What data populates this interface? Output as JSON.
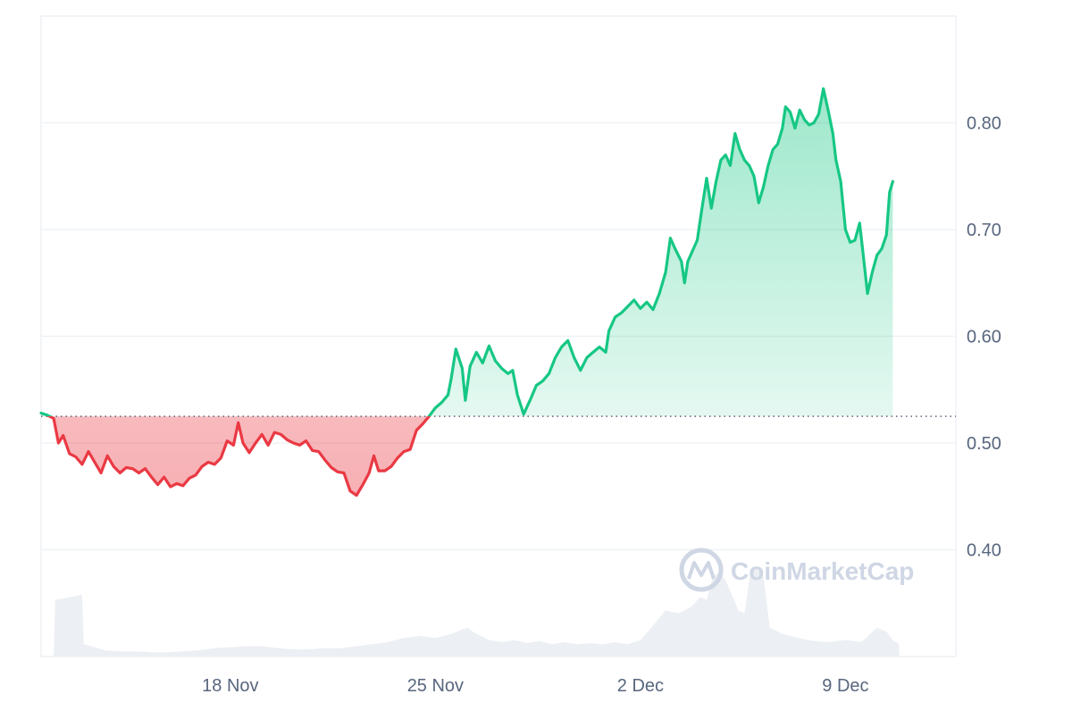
{
  "chart_data": {
    "type": "area",
    "baseline": 0.525,
    "ylim": [
      0.3,
      0.9
    ],
    "yticks": [
      {
        "value": 0.8,
        "label": "0.80"
      },
      {
        "value": 0.7,
        "label": "0.70"
      },
      {
        "value": 0.6,
        "label": "0.60"
      },
      {
        "value": 0.5,
        "label": "0.50"
      },
      {
        "value": 0.4,
        "label": "0.40"
      }
    ],
    "x_domain": [
      0,
      29
    ],
    "xticks": [
      {
        "value": 6.0,
        "label": "18 Nov"
      },
      {
        "value": 12.5,
        "label": "25 Nov"
      },
      {
        "value": 19.0,
        "label": "2 Dec"
      },
      {
        "value": 25.5,
        "label": "9 Dec"
      }
    ],
    "price_series": [
      [
        0.0,
        0.528
      ],
      [
        0.2,
        0.526
      ],
      [
        0.4,
        0.523
      ],
      [
        0.55,
        0.5
      ],
      [
        0.7,
        0.507
      ],
      [
        0.9,
        0.49
      ],
      [
        1.1,
        0.487
      ],
      [
        1.3,
        0.48
      ],
      [
        1.5,
        0.492
      ],
      [
        1.7,
        0.482
      ],
      [
        1.9,
        0.472
      ],
      [
        2.1,
        0.488
      ],
      [
        2.3,
        0.478
      ],
      [
        2.5,
        0.472
      ],
      [
        2.7,
        0.477
      ],
      [
        2.9,
        0.476
      ],
      [
        3.1,
        0.472
      ],
      [
        3.3,
        0.476
      ],
      [
        3.5,
        0.468
      ],
      [
        3.7,
        0.461
      ],
      [
        3.9,
        0.468
      ],
      [
        4.1,
        0.459
      ],
      [
        4.3,
        0.462
      ],
      [
        4.5,
        0.46
      ],
      [
        4.7,
        0.467
      ],
      [
        4.9,
        0.47
      ],
      [
        5.1,
        0.478
      ],
      [
        5.3,
        0.482
      ],
      [
        5.5,
        0.48
      ],
      [
        5.7,
        0.486
      ],
      [
        5.9,
        0.502
      ],
      [
        6.1,
        0.498
      ],
      [
        6.25,
        0.519
      ],
      [
        6.4,
        0.5
      ],
      [
        6.6,
        0.491
      ],
      [
        6.8,
        0.5
      ],
      [
        7.0,
        0.508
      ],
      [
        7.2,
        0.498
      ],
      [
        7.4,
        0.51
      ],
      [
        7.6,
        0.508
      ],
      [
        7.8,
        0.503
      ],
      [
        8.0,
        0.5
      ],
      [
        8.2,
        0.498
      ],
      [
        8.4,
        0.502
      ],
      [
        8.6,
        0.493
      ],
      [
        8.8,
        0.492
      ],
      [
        9.0,
        0.484
      ],
      [
        9.2,
        0.477
      ],
      [
        9.4,
        0.473
      ],
      [
        9.6,
        0.472
      ],
      [
        9.8,
        0.455
      ],
      [
        10.0,
        0.451
      ],
      [
        10.2,
        0.461
      ],
      [
        10.4,
        0.472
      ],
      [
        10.55,
        0.488
      ],
      [
        10.7,
        0.474
      ],
      [
        10.9,
        0.474
      ],
      [
        11.1,
        0.478
      ],
      [
        11.3,
        0.486
      ],
      [
        11.5,
        0.492
      ],
      [
        11.7,
        0.494
      ],
      [
        11.9,
        0.512
      ],
      [
        12.1,
        0.518
      ],
      [
        12.3,
        0.525
      ],
      [
        12.5,
        0.533
      ],
      [
        12.7,
        0.538
      ],
      [
        12.9,
        0.545
      ],
      [
        13.0,
        0.56
      ],
      [
        13.15,
        0.588
      ],
      [
        13.35,
        0.57
      ],
      [
        13.45,
        0.54
      ],
      [
        13.6,
        0.572
      ],
      [
        13.8,
        0.585
      ],
      [
        14.0,
        0.575
      ],
      [
        14.2,
        0.591
      ],
      [
        14.4,
        0.577
      ],
      [
        14.6,
        0.57
      ],
      [
        14.8,
        0.565
      ],
      [
        14.95,
        0.568
      ],
      [
        15.1,
        0.545
      ],
      [
        15.3,
        0.527
      ],
      [
        15.5,
        0.54
      ],
      [
        15.7,
        0.554
      ],
      [
        15.9,
        0.558
      ],
      [
        16.1,
        0.565
      ],
      [
        16.3,
        0.58
      ],
      [
        16.5,
        0.59
      ],
      [
        16.7,
        0.596
      ],
      [
        16.9,
        0.58
      ],
      [
        17.1,
        0.568
      ],
      [
        17.3,
        0.58
      ],
      [
        17.5,
        0.585
      ],
      [
        17.7,
        0.59
      ],
      [
        17.9,
        0.585
      ],
      [
        18.0,
        0.605
      ],
      [
        18.2,
        0.618
      ],
      [
        18.4,
        0.622
      ],
      [
        18.6,
        0.628
      ],
      [
        18.8,
        0.634
      ],
      [
        19.0,
        0.626
      ],
      [
        19.2,
        0.632
      ],
      [
        19.4,
        0.625
      ],
      [
        19.6,
        0.64
      ],
      [
        19.8,
        0.66
      ],
      [
        19.95,
        0.692
      ],
      [
        20.1,
        0.682
      ],
      [
        20.3,
        0.67
      ],
      [
        20.4,
        0.65
      ],
      [
        20.5,
        0.67
      ],
      [
        20.65,
        0.68
      ],
      [
        20.8,
        0.69
      ],
      [
        20.95,
        0.72
      ],
      [
        21.1,
        0.748
      ],
      [
        21.25,
        0.72
      ],
      [
        21.4,
        0.745
      ],
      [
        21.55,
        0.765
      ],
      [
        21.7,
        0.77
      ],
      [
        21.85,
        0.76
      ],
      [
        22.0,
        0.79
      ],
      [
        22.15,
        0.775
      ],
      [
        22.3,
        0.765
      ],
      [
        22.45,
        0.76
      ],
      [
        22.6,
        0.75
      ],
      [
        22.75,
        0.725
      ],
      [
        22.9,
        0.74
      ],
      [
        23.05,
        0.76
      ],
      [
        23.2,
        0.775
      ],
      [
        23.35,
        0.78
      ],
      [
        23.5,
        0.795
      ],
      [
        23.6,
        0.815
      ],
      [
        23.75,
        0.81
      ],
      [
        23.9,
        0.795
      ],
      [
        24.05,
        0.812
      ],
      [
        24.2,
        0.803
      ],
      [
        24.35,
        0.798
      ],
      [
        24.5,
        0.8
      ],
      [
        24.65,
        0.808
      ],
      [
        24.8,
        0.832
      ],
      [
        24.95,
        0.812
      ],
      [
        25.1,
        0.79
      ],
      [
        25.2,
        0.765
      ],
      [
        25.35,
        0.745
      ],
      [
        25.5,
        0.7
      ],
      [
        25.65,
        0.688
      ],
      [
        25.8,
        0.69
      ],
      [
        25.95,
        0.706
      ],
      [
        26.05,
        0.68
      ],
      [
        26.2,
        0.64
      ],
      [
        26.35,
        0.66
      ],
      [
        26.5,
        0.676
      ],
      [
        26.65,
        0.682
      ],
      [
        26.8,
        0.695
      ],
      [
        26.9,
        0.735
      ],
      [
        27.0,
        0.745
      ]
    ],
    "volume_series": [
      [
        0.0,
        0.0
      ],
      [
        0.4,
        0.0
      ],
      [
        0.45,
        0.55
      ],
      [
        1.3,
        0.6
      ],
      [
        1.35,
        0.12
      ],
      [
        1.6,
        0.1
      ],
      [
        2.0,
        0.06
      ],
      [
        2.5,
        0.05
      ],
      [
        3.0,
        0.05
      ],
      [
        3.5,
        0.04
      ],
      [
        4.0,
        0.04
      ],
      [
        4.5,
        0.05
      ],
      [
        5.0,
        0.06
      ],
      [
        5.5,
        0.08
      ],
      [
        6.0,
        0.09
      ],
      [
        6.5,
        0.1
      ],
      [
        7.0,
        0.1
      ],
      [
        7.5,
        0.08
      ],
      [
        8.0,
        0.07
      ],
      [
        8.5,
        0.07
      ],
      [
        9.0,
        0.08
      ],
      [
        9.5,
        0.08
      ],
      [
        10.0,
        0.1
      ],
      [
        10.5,
        0.12
      ],
      [
        11.0,
        0.14
      ],
      [
        11.5,
        0.18
      ],
      [
        12.0,
        0.2
      ],
      [
        12.5,
        0.18
      ],
      [
        13.0,
        0.22
      ],
      [
        13.5,
        0.28
      ],
      [
        13.8,
        0.22
      ],
      [
        14.2,
        0.16
      ],
      [
        14.6,
        0.14
      ],
      [
        15.0,
        0.16
      ],
      [
        15.4,
        0.13
      ],
      [
        15.8,
        0.15
      ],
      [
        16.2,
        0.12
      ],
      [
        16.6,
        0.14
      ],
      [
        17.0,
        0.12
      ],
      [
        17.4,
        0.13
      ],
      [
        17.8,
        0.12
      ],
      [
        18.2,
        0.14
      ],
      [
        18.6,
        0.12
      ],
      [
        19.0,
        0.16
      ],
      [
        19.4,
        0.3
      ],
      [
        19.8,
        0.45
      ],
      [
        20.2,
        0.42
      ],
      [
        20.6,
        0.48
      ],
      [
        20.9,
        0.58
      ],
      [
        21.1,
        0.55
      ],
      [
        21.3,
        0.78
      ],
      [
        21.5,
        0.82
      ],
      [
        21.7,
        0.74
      ],
      [
        21.9,
        0.6
      ],
      [
        22.1,
        0.45
      ],
      [
        22.3,
        0.42
      ],
      [
        22.5,
        0.85
      ],
      [
        22.7,
        0.86
      ],
      [
        22.9,
        0.78
      ],
      [
        23.1,
        0.28
      ],
      [
        23.5,
        0.22
      ],
      [
        24.0,
        0.18
      ],
      [
        24.5,
        0.15
      ],
      [
        25.0,
        0.14
      ],
      [
        25.5,
        0.16
      ],
      [
        26.0,
        0.14
      ],
      [
        26.5,
        0.28
      ],
      [
        26.8,
        0.24
      ],
      [
        27.0,
        0.16
      ],
      [
        27.2,
        0.12
      ]
    ],
    "colors": {
      "up": "#16c784",
      "down": "#ea3943",
      "grid": "#eff2f5",
      "baseline": "#58667e",
      "volume": "#eceff3"
    }
  },
  "watermark": {
    "text": "CoinMarketCap",
    "icon": "coinmarketcap-logo-icon"
  }
}
